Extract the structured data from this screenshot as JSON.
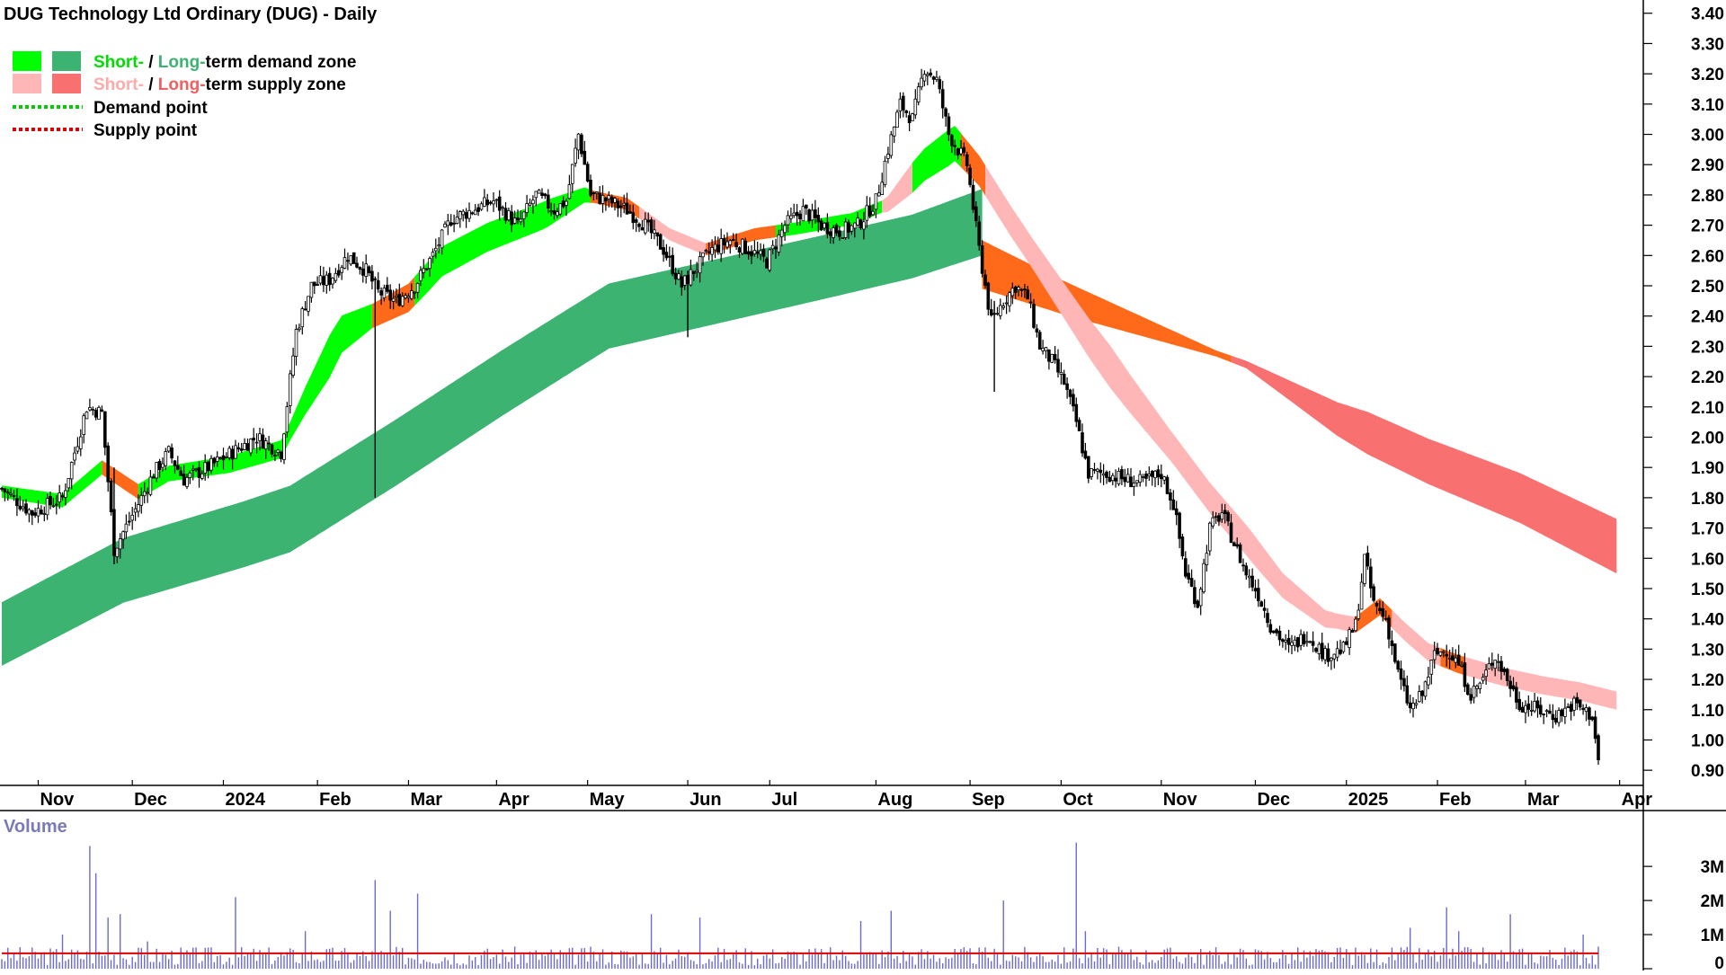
{
  "chart_data": {
    "type": "candlestick",
    "title": "DUG Technology Ltd Ordinary (DUG) - Daily",
    "legend": {
      "placement": "top-left",
      "demand_zone": {
        "short": "Short-",
        "sep": " / ",
        "long": "Long-",
        "rest": "term demand zone"
      },
      "supply_zone": {
        "short": "Short-",
        "sep": " / ",
        "long": "Long-",
        "rest": "term supply zone"
      },
      "demand_point": "Demand point",
      "supply_point": "Supply point"
    },
    "colors": {
      "short_demand": "#00ff00",
      "long_demand": "#3cb371",
      "short_supply": "#ffb6b6",
      "long_supply": "#f87070",
      "transition": "#ff6a1a",
      "demand_point": "#00cc00",
      "supply_point": "#dd0000",
      "volume_bar": "#6a6ad0",
      "volume_avg": "#dd0000"
    },
    "y_axis": {
      "min": 0.85,
      "max": 3.42,
      "ticks": [
        "3.40",
        "3.30",
        "3.20",
        "3.10",
        "3.00",
        "2.90",
        "2.80",
        "2.70",
        "2.60",
        "2.50",
        "2.40",
        "2.30",
        "2.20",
        "2.10",
        "2.00",
        "1.90",
        "1.80",
        "1.70",
        "1.60",
        "1.50",
        "1.40",
        "1.30",
        "1.20",
        "1.10",
        "1.00",
        "0.90"
      ]
    },
    "x_axis": {
      "day_range": [
        0,
        526
      ],
      "months": [
        {
          "label": "Nov",
          "day": 12
        },
        {
          "label": "Dec",
          "day": 43
        },
        {
          "label": "2024",
          "day": 73
        },
        {
          "label": "Feb",
          "day": 104
        },
        {
          "label": "Mar",
          "day": 134
        },
        {
          "label": "Apr",
          "day": 163
        },
        {
          "label": "May",
          "day": 193
        },
        {
          "label": "Jun",
          "day": 226
        },
        {
          "label": "Jul",
          "day": 253
        },
        {
          "label": "Aug",
          "day": 288
        },
        {
          "label": "Sep",
          "day": 319
        },
        {
          "label": "Oct",
          "day": 349
        },
        {
          "label": "Nov",
          "day": 382
        },
        {
          "label": "Dec",
          "day": 413
        },
        {
          "label": "2025",
          "day": 443
        },
        {
          "label": "Feb",
          "day": 473
        },
        {
          "label": "Mar",
          "day": 502
        },
        {
          "label": "Apr",
          "day": 533
        }
      ]
    },
    "price_path": [
      [
        0,
        1.83
      ],
      [
        10,
        1.75
      ],
      [
        20,
        1.8
      ],
      [
        28,
        2.1
      ],
      [
        33,
        2.08
      ],
      [
        37,
        1.63
      ],
      [
        45,
        1.78
      ],
      [
        50,
        1.88
      ],
      [
        55,
        1.95
      ],
      [
        60,
        1.86
      ],
      [
        68,
        1.9
      ],
      [
        76,
        1.95
      ],
      [
        84,
        2.0
      ],
      [
        92,
        1.95
      ],
      [
        97,
        2.35
      ],
      [
        102,
        2.5
      ],
      [
        108,
        2.52
      ],
      [
        114,
        2.6
      ],
      [
        120,
        2.55
      ],
      [
        124,
        2.48
      ],
      [
        130,
        2.45
      ],
      [
        136,
        2.5
      ],
      [
        142,
        2.6
      ],
      [
        148,
        2.72
      ],
      [
        155,
        2.75
      ],
      [
        162,
        2.78
      ],
      [
        170,
        2.7
      ],
      [
        176,
        2.8
      ],
      [
        182,
        2.75
      ],
      [
        186,
        2.78
      ],
      [
        190,
        3.0
      ],
      [
        194,
        2.8
      ],
      [
        200,
        2.78
      ],
      [
        206,
        2.75
      ],
      [
        212,
        2.7
      ],
      [
        218,
        2.62
      ],
      [
        224,
        2.5
      ],
      [
        228,
        2.55
      ],
      [
        234,
        2.62
      ],
      [
        240,
        2.65
      ],
      [
        246,
        2.62
      ],
      [
        252,
        2.58
      ],
      [
        258,
        2.7
      ],
      [
        264,
        2.75
      ],
      [
        270,
        2.7
      ],
      [
        276,
        2.68
      ],
      [
        282,
        2.7
      ],
      [
        288,
        2.78
      ],
      [
        292,
        2.95
      ],
      [
        296,
        3.1
      ],
      [
        300,
        3.05
      ],
      [
        304,
        3.22
      ],
      [
        308,
        3.18
      ],
      [
        312,
        3.0
      ],
      [
        318,
        2.9
      ],
      [
        322,
        2.62
      ],
      [
        326,
        2.38
      ],
      [
        330,
        2.45
      ],
      [
        334,
        2.5
      ],
      [
        338,
        2.46
      ],
      [
        342,
        2.3
      ],
      [
        346,
        2.25
      ],
      [
        350,
        2.18
      ],
      [
        354,
        2.05
      ],
      [
        358,
        1.88
      ],
      [
        364,
        1.88
      ],
      [
        370,
        1.86
      ],
      [
        376,
        1.85
      ],
      [
        382,
        1.88
      ],
      [
        386,
        1.78
      ],
      [
        390,
        1.55
      ],
      [
        394,
        1.45
      ],
      [
        398,
        1.7
      ],
      [
        402,
        1.75
      ],
      [
        406,
        1.65
      ],
      [
        410,
        1.55
      ],
      [
        414,
        1.48
      ],
      [
        418,
        1.38
      ],
      [
        424,
        1.3
      ],
      [
        430,
        1.35
      ],
      [
        436,
        1.28
      ],
      [
        442,
        1.3
      ],
      [
        446,
        1.38
      ],
      [
        449,
        1.6
      ],
      [
        452,
        1.45
      ],
      [
        456,
        1.4
      ],
      [
        460,
        1.22
      ],
      [
        464,
        1.1
      ],
      [
        468,
        1.15
      ],
      [
        472,
        1.28
      ],
      [
        476,
        1.3
      ],
      [
        480,
        1.25
      ],
      [
        484,
        1.15
      ],
      [
        488,
        1.2
      ],
      [
        492,
        1.28
      ],
      [
        496,
        1.2
      ],
      [
        500,
        1.12
      ],
      [
        506,
        1.1
      ],
      [
        512,
        1.08
      ],
      [
        518,
        1.12
      ],
      [
        524,
        1.08
      ],
      [
        526,
        0.93
      ]
    ],
    "long_demand_zone": {
      "start": 0,
      "end": 323,
      "mid": [
        [
          0,
          1.35
        ],
        [
          40,
          1.56
        ],
        [
          80,
          1.68
        ],
        [
          95,
          1.73
        ],
        [
          130,
          1.95
        ],
        [
          165,
          2.18
        ],
        [
          200,
          2.4
        ],
        [
          235,
          2.48
        ],
        [
          270,
          2.56
        ],
        [
          300,
          2.63
        ],
        [
          323,
          2.71
        ]
      ],
      "half_width": [
        [
          0,
          0.105
        ],
        [
          100,
          0.11
        ],
        [
          300,
          0.105
        ],
        [
          323,
          0.11
        ]
      ]
    },
    "long_supply_zone": {
      "start": 323,
      "end": 532,
      "mid": [
        [
          323,
          2.57
        ],
        [
          350,
          2.46
        ],
        [
          380,
          2.35
        ],
        [
          410,
          2.24
        ],
        [
          440,
          2.06
        ],
        [
          470,
          1.92
        ],
        [
          500,
          1.8
        ],
        [
          532,
          1.64
        ]
      ],
      "half_width": [
        [
          323,
          0.08
        ],
        [
          400,
          0.01
        ],
        [
          410,
          0.012
        ],
        [
          450,
          0.07
        ],
        [
          532,
          0.09
        ]
      ]
    },
    "short_zone": {
      "mid": [
        [
          0,
          1.82
        ],
        [
          20,
          1.79
        ],
        [
          33,
          1.9
        ],
        [
          45,
          1.82
        ],
        [
          55,
          1.88
        ],
        [
          75,
          1.91
        ],
        [
          92,
          1.96
        ],
        [
          100,
          2.12
        ],
        [
          112,
          2.34
        ],
        [
          122,
          2.4
        ],
        [
          134,
          2.46
        ],
        [
          145,
          2.58
        ],
        [
          160,
          2.66
        ],
        [
          178,
          2.73
        ],
        [
          192,
          2.8
        ],
        [
          206,
          2.77
        ],
        [
          220,
          2.67
        ],
        [
          232,
          2.62
        ],
        [
          248,
          2.67
        ],
        [
          262,
          2.69
        ],
        [
          280,
          2.72
        ],
        [
          292,
          2.77
        ],
        [
          304,
          2.9
        ],
        [
          314,
          2.97
        ],
        [
          322,
          2.88
        ],
        [
          332,
          2.72
        ],
        [
          344,
          2.54
        ],
        [
          358,
          2.33
        ],
        [
          372,
          2.14
        ],
        [
          386,
          1.96
        ],
        [
          398,
          1.8
        ],
        [
          410,
          1.66
        ],
        [
          422,
          1.51
        ],
        [
          436,
          1.4
        ],
        [
          446,
          1.38
        ],
        [
          454,
          1.44
        ],
        [
          462,
          1.36
        ],
        [
          470,
          1.29
        ],
        [
          480,
          1.25
        ],
        [
          494,
          1.21
        ],
        [
          508,
          1.18
        ],
        [
          520,
          1.16
        ],
        [
          532,
          1.13
        ]
      ],
      "half_width": [
        [
          0,
          0.02
        ],
        [
          95,
          0.03
        ],
        [
          108,
          0.07
        ],
        [
          122,
          0.04
        ],
        [
          140,
          0.05
        ],
        [
          180,
          0.045
        ],
        [
          195,
          0.02
        ],
        [
          206,
          0.02
        ],
        [
          240,
          0.02
        ],
        [
          290,
          0.02
        ],
        [
          300,
          0.05
        ],
        [
          312,
          0.06
        ],
        [
          322,
          0.05
        ],
        [
          340,
          0.05
        ],
        [
          365,
          0.07
        ],
        [
          385,
          0.05
        ],
        [
          412,
          0.05
        ],
        [
          440,
          0.025
        ],
        [
          460,
          0.03
        ],
        [
          532,
          0.03
        ]
      ],
      "color_segments": [
        {
          "start": 0,
          "end": 33,
          "role": "short_demand"
        },
        {
          "start": 33,
          "end": 45,
          "role": "transition"
        },
        {
          "start": 45,
          "end": 122,
          "role": "short_demand"
        },
        {
          "start": 122,
          "end": 136,
          "role": "transition"
        },
        {
          "start": 136,
          "end": 194,
          "role": "short_demand"
        },
        {
          "start": 194,
          "end": 210,
          "role": "transition"
        },
        {
          "start": 210,
          "end": 232,
          "role": "short_supply"
        },
        {
          "start": 232,
          "end": 255,
          "role": "transition"
        },
        {
          "start": 255,
          "end": 290,
          "role": "short_demand"
        },
        {
          "start": 290,
          "end": 300,
          "role": "short_supply"
        },
        {
          "start": 300,
          "end": 316,
          "role": "short_demand"
        },
        {
          "start": 316,
          "end": 324,
          "role": "transition"
        },
        {
          "start": 324,
          "end": 446,
          "role": "short_supply"
        },
        {
          "start": 446,
          "end": 458,
          "role": "transition"
        },
        {
          "start": 458,
          "end": 474,
          "role": "short_supply"
        },
        {
          "start": 474,
          "end": 482,
          "role": "transition"
        },
        {
          "start": 482,
          "end": 532,
          "role": "short_supply"
        }
      ]
    },
    "volume": {
      "label": "Volume",
      "ticks": [
        "3M",
        "2M",
        "1M",
        "0"
      ],
      "max": 3.9,
      "avg": 0.45,
      "spikes": [
        [
          20,
          1.0
        ],
        [
          29,
          3.6
        ],
        [
          31,
          2.8
        ],
        [
          35,
          1.5
        ],
        [
          39,
          1.6
        ],
        [
          48,
          0.8
        ],
        [
          77,
          2.1
        ],
        [
          100,
          1.1
        ],
        [
          123,
          2.6
        ],
        [
          128,
          1.7
        ],
        [
          137,
          2.2
        ],
        [
          214,
          1.6
        ],
        [
          230,
          1.5
        ],
        [
          283,
          1.4
        ],
        [
          293,
          1.7
        ],
        [
          330,
          2.0
        ],
        [
          354,
          3.7
        ],
        [
          357,
          1.1
        ],
        [
          464,
          1.2
        ],
        [
          476,
          1.8
        ],
        [
          480,
          1.1
        ],
        [
          497,
          1.6
        ],
        [
          521,
          1.0
        ]
      ]
    }
  }
}
